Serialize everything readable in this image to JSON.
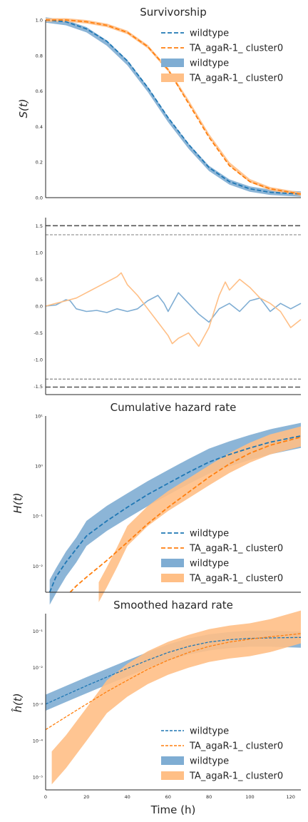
{
  "colors": {
    "blue": "#1f77b4",
    "orange": "#ff7f0e",
    "band_blue": "#7fadd3",
    "band_orange": "#ffbf86",
    "axis": "#262626",
    "ref": "#555555"
  },
  "chart_data": [
    {
      "id": "survivorship",
      "type": "line",
      "title": "Survivorship",
      "ylabel": "S(t)",
      "xlim": [
        0,
        125
      ],
      "ylim": [
        0,
        1
      ],
      "yticks": [
        "0.0",
        "0.2",
        "0.4",
        "0.6",
        "0.8",
        "1.0"
      ],
      "legend": [
        "wildtype",
        "TA_agaR-1_ cluster0",
        "wildtype",
        "TA_agaR-1_ cluster0"
      ],
      "legend_position": "top-right",
      "series": [
        {
          "name": "wildtype",
          "kind": "fit",
          "x": [
            0,
            10,
            20,
            30,
            40,
            50,
            60,
            70,
            80,
            90,
            100,
            110,
            125
          ],
          "y": [
            1.0,
            0.99,
            0.95,
            0.88,
            0.77,
            0.62,
            0.45,
            0.3,
            0.17,
            0.09,
            0.05,
            0.03,
            0.02
          ]
        },
        {
          "name": "TA_agaR-1_ cluster0",
          "kind": "fit",
          "x": [
            0,
            10,
            20,
            30,
            40,
            50,
            60,
            70,
            80,
            90,
            100,
            110,
            125
          ],
          "y": [
            1.0,
            1.0,
            0.99,
            0.97,
            0.93,
            0.85,
            0.72,
            0.53,
            0.34,
            0.18,
            0.09,
            0.05,
            0.02
          ]
        },
        {
          "name": "wildtype",
          "kind": "band",
          "x": [
            0,
            10,
            20,
            30,
            40,
            50,
            60,
            70,
            80,
            90,
            100,
            110,
            125
          ],
          "y": [
            1.0,
            0.985,
            0.945,
            0.87,
            0.76,
            0.61,
            0.44,
            0.29,
            0.165,
            0.088,
            0.048,
            0.03,
            0.02
          ],
          "width": 0.015
        },
        {
          "name": "TA_agaR-1_ cluster0",
          "kind": "band",
          "x": [
            0,
            10,
            20,
            30,
            40,
            50,
            60,
            70,
            80,
            90,
            100,
            110,
            125
          ],
          "y": [
            1.0,
            1.0,
            0.99,
            0.97,
            0.93,
            0.85,
            0.72,
            0.54,
            0.35,
            0.19,
            0.095,
            0.05,
            0.02
          ],
          "width": 0.01
        }
      ]
    },
    {
      "id": "residual",
      "type": "line",
      "xlim": [
        0,
        125
      ],
      "ylim": [
        -1.65,
        1.65
      ],
      "yticks": [
        "-1.5",
        "-1.0",
        "-0.5",
        "0.0",
        "0.5",
        "1.0",
        "1.5"
      ],
      "reference_lines": [
        {
          "y": 1.5,
          "style": "dashed-thick"
        },
        {
          "y": 1.33,
          "style": "dashed-thin"
        },
        {
          "y": -1.36,
          "style": "dashed-thin"
        },
        {
          "y": -1.51,
          "style": "dashed-thick"
        }
      ],
      "series": [
        {
          "name": "wildtype",
          "x": [
            0,
            5,
            10,
            12,
            15,
            20,
            25,
            30,
            35,
            40,
            45,
            50,
            55,
            58,
            60,
            65,
            70,
            75,
            80,
            85,
            90,
            95,
            100,
            105,
            110,
            115,
            120,
            125
          ],
          "y": [
            0.0,
            0.02,
            0.12,
            0.1,
            -0.05,
            -0.1,
            -0.08,
            -0.12,
            -0.05,
            -0.1,
            -0.05,
            0.1,
            0.2,
            0.05,
            -0.1,
            0.25,
            0.05,
            -0.15,
            -0.3,
            -0.05,
            0.05,
            -0.1,
            0.1,
            0.15,
            -0.1,
            0.05,
            -0.05,
            0.05
          ]
        },
        {
          "name": "TA_agaR-1_ cluster0",
          "x": [
            0,
            5,
            10,
            15,
            20,
            25,
            30,
            35,
            37,
            40,
            45,
            50,
            55,
            60,
            62,
            65,
            70,
            75,
            80,
            85,
            88,
            90,
            95,
            100,
            105,
            110,
            115,
            120,
            125
          ],
          "y": [
            0.0,
            0.05,
            0.1,
            0.15,
            0.25,
            0.35,
            0.45,
            0.55,
            0.62,
            0.4,
            0.2,
            -0.05,
            -0.3,
            -0.55,
            -0.7,
            -0.6,
            -0.5,
            -0.75,
            -0.4,
            0.2,
            0.45,
            0.3,
            0.5,
            0.35,
            0.15,
            0.05,
            -0.1,
            -0.4,
            -0.25
          ]
        }
      ]
    },
    {
      "id": "cumulative_hazard",
      "type": "line",
      "title": "Cumulative hazard rate",
      "ylabel": "H(t)",
      "yscale": "log",
      "xlim": [
        0,
        125
      ],
      "ylim": [
        0.003,
        10
      ],
      "yticks": [
        "10⁻²",
        "10⁻¹",
        "10⁰",
        "10¹"
      ],
      "legend": [
        "wildtype",
        "TA_agaR-1_ cluster0",
        "wildtype",
        "TA_agaR-1_ cluster0"
      ],
      "legend_position": "lower-right",
      "series": [
        {
          "name": "wildtype",
          "kind": "fit",
          "x": [
            2,
            5,
            10,
            15,
            20,
            30,
            40,
            50,
            60,
            70,
            80,
            90,
            100,
            110,
            125
          ],
          "y": [
            0.003,
            0.006,
            0.012,
            0.022,
            0.04,
            0.08,
            0.15,
            0.27,
            0.45,
            0.75,
            1.2,
            1.7,
            2.3,
            3.0,
            4.0
          ]
        },
        {
          "name": "TA_agaR-1_ cluster0",
          "kind": "fit",
          "x": [
            12,
            15,
            20,
            30,
            40,
            50,
            60,
            70,
            80,
            90,
            100,
            110,
            125
          ],
          "y": [
            0.003,
            0.004,
            0.006,
            0.013,
            0.03,
            0.07,
            0.15,
            0.3,
            0.6,
            1.1,
            1.8,
            2.6,
            3.8
          ]
        },
        {
          "name": "wildtype",
          "kind": "band",
          "x": [
            2,
            5,
            10,
            15,
            20,
            30,
            40,
            50,
            60,
            70,
            80,
            90,
            100,
            110,
            125
          ],
          "y": [
            0.003,
            0.005,
            0.011,
            0.021,
            0.045,
            0.09,
            0.16,
            0.28,
            0.47,
            0.78,
            1.25,
            1.75,
            2.35,
            3.05,
            4.1
          ],
          "width": 0.25
        },
        {
          "name": "TA_agaR-1_ cluster0",
          "kind": "band",
          "x": [
            26,
            30,
            35,
            40,
            50,
            60,
            70,
            80,
            90,
            100,
            110,
            125
          ],
          "y": [
            0.003,
            0.006,
            0.015,
            0.04,
            0.1,
            0.2,
            0.36,
            0.65,
            1.15,
            1.85,
            2.7,
            3.9
          ],
          "width": 0.2
        }
      ]
    },
    {
      "id": "smoothed_hazard",
      "type": "line",
      "title": "Smoothed hazard rate",
      "ylabel": "ĥ(t)",
      "xlabel": "Time (h)",
      "yscale": "log",
      "xlim": [
        0,
        125
      ],
      "ylim": [
        4.5e-06,
        0.3
      ],
      "xticks": [
        "0",
        "20",
        "40",
        "60",
        "80",
        "100",
        "120"
      ],
      "yticks": [
        "10⁻⁵",
        "10⁻⁴",
        "10⁻³",
        "10⁻²",
        "10⁻¹"
      ],
      "legend": [
        "wildtype",
        "TA_agaR-1_ cluster0",
        "wildtype",
        "TA_agaR-1_ cluster0"
      ],
      "legend_position": "lower-right",
      "series": [
        {
          "name": "wildtype",
          "kind": "fit",
          "x": [
            0,
            10,
            20,
            30,
            40,
            50,
            60,
            70,
            80,
            90,
            100,
            110,
            125
          ],
          "y": [
            0.001,
            0.0018,
            0.0032,
            0.0055,
            0.0095,
            0.016,
            0.026,
            0.038,
            0.05,
            0.058,
            0.063,
            0.065,
            0.067
          ]
        },
        {
          "name": "TA_agaR-1_ cluster0",
          "kind": "fit",
          "x": [
            0,
            10,
            20,
            30,
            40,
            50,
            60,
            70,
            80,
            90,
            100,
            110,
            125
          ],
          "y": [
            0.0002,
            0.00045,
            0.001,
            0.0022,
            0.0045,
            0.009,
            0.016,
            0.026,
            0.038,
            0.05,
            0.06,
            0.07,
            0.085
          ]
        },
        {
          "name": "wildtype",
          "kind": "band",
          "x": [
            0,
            10,
            20,
            30,
            40,
            50,
            60,
            70,
            80,
            90,
            100,
            110,
            125
          ],
          "y": [
            0.0011,
            0.0019,
            0.0033,
            0.0056,
            0.0095,
            0.016,
            0.026,
            0.038,
            0.049,
            0.057,
            0.062,
            0.062,
            0.058
          ],
          "width": 0.22
        },
        {
          "name": "TA_agaR-1_ cluster0",
          "kind": "band",
          "x": [
            3,
            10,
            20,
            30,
            40,
            50,
            60,
            70,
            80,
            90,
            100,
            110,
            125
          ],
          "y": [
            1.8e-05,
            5e-05,
            0.00028,
            0.0016,
            0.0045,
            0.01,
            0.018,
            0.028,
            0.04,
            0.05,
            0.058,
            0.075,
            0.13
          ],
          "width": 0.45
        }
      ]
    }
  ]
}
